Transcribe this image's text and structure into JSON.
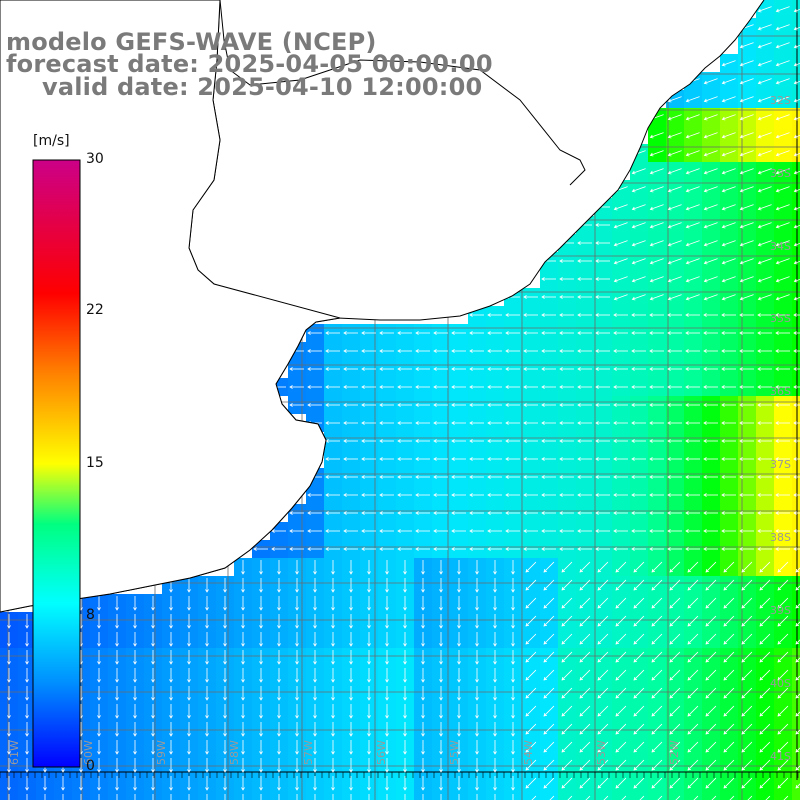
{
  "header": {
    "model": "modelo GEFS-WAVE (NCEP)",
    "forecast": "forecast date: 2025-04-05 00:00:00",
    "valid": "valid date: 2025-04-10 12:00:00"
  },
  "colorbar": {
    "unit": "[m/s]",
    "ticks": [
      "30",
      "22",
      "15",
      "8",
      "0"
    ],
    "tick_values": [
      30,
      22,
      15,
      8,
      0
    ],
    "range": [
      0,
      30
    ],
    "colors": [
      "#0000ff",
      "#0090ff",
      "#00ffff",
      "#00ff00",
      "#ffff00",
      "#ff8000",
      "#ff0000",
      "#cc0066"
    ]
  },
  "map": {
    "lat_labels": [
      "32S",
      "33S",
      "34S",
      "35S",
      "36S",
      "37S",
      "38S",
      "39S",
      "40S",
      "41S"
    ],
    "lon_labels": [
      "61W",
      "60W",
      "59W",
      "58W",
      "57W",
      "56W",
      "55W",
      "54W",
      "53W",
      "52W"
    ],
    "land_color": "#ffffff",
    "grid_color": "#707070",
    "arrow_color": "#ffffff"
  }
}
